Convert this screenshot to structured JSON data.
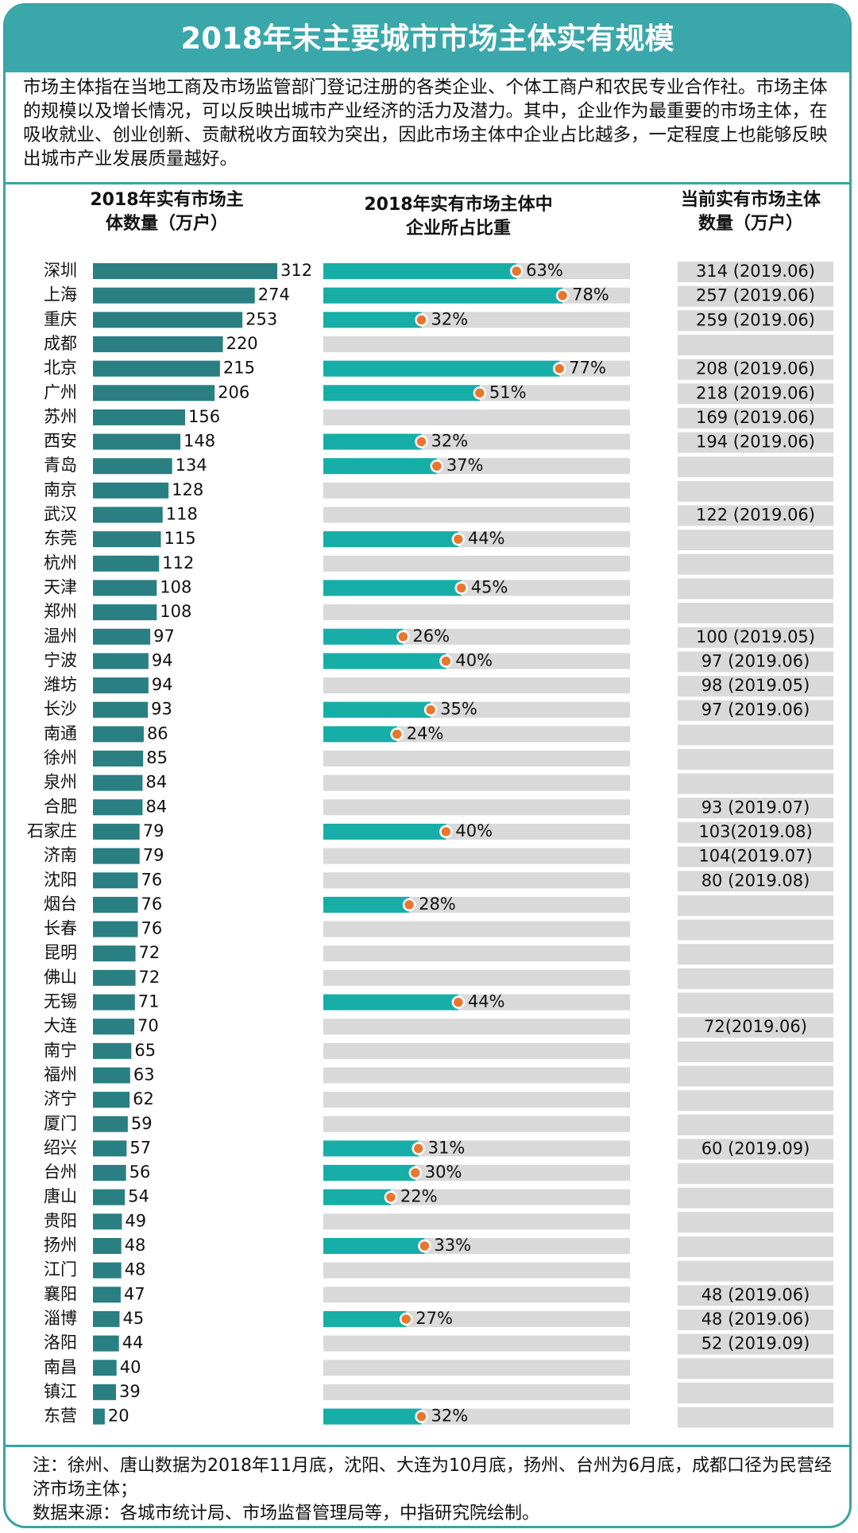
{
  "title": "2018年末主要城市市场主体实有规模",
  "intro": "市场主体指在当地工商及市场监管部门登记注册的各类企业、个体工商户和农民专业合作社。市场主体的规模以及增长情况，可以反映出城市产业经济的活力及潜力。其中，企业作为最重要的市场主体，在吸收就业、创业创新、贡献税收方面较为突出，因此市场主体中企业占比越多，一定程度上也能够反映出城市产业发展质量越好。",
  "columns": {
    "count_line1": "2018年实有市场主",
    "count_line2": "体数量（万户）",
    "share_line1": "2018年实有市场主体中",
    "share_line2": "企业所占比重",
    "current_line1": "当前实有市场主体",
    "current_line2": "数量（万户）"
  },
  "footer": {
    "note": "注：徐州、唐山数据为2018年11月底，沈阳、大连为10月底，扬州、台州为6月底，成都口径为民营经济市场主体；",
    "source": "数据来源：各城市统计局、市场监督管理局等，中指研究院绘制。"
  },
  "colors": {
    "count_bar": "#2a7f82",
    "share_bar": "#17aea8",
    "track": "#d9d9d9",
    "dot": "#e8762e",
    "accent": "#3aa7aa"
  },
  "chart_data": {
    "type": "bar",
    "categories": [
      "深圳",
      "上海",
      "重庆",
      "成都",
      "北京",
      "广州",
      "苏州",
      "西安",
      "青岛",
      "南京",
      "武汉",
      "东莞",
      "杭州",
      "天津",
      "郑州",
      "温州",
      "宁波",
      "潍坊",
      "长沙",
      "南通",
      "徐州",
      "泉州",
      "合肥",
      "石家庄",
      "济南",
      "沈阳",
      "烟台",
      "长春",
      "昆明",
      "佛山",
      "无锡",
      "大连",
      "南宁",
      "福州",
      "济宁",
      "厦门",
      "绍兴",
      "台州",
      "唐山",
      "贵阳",
      "扬州",
      "江门",
      "襄阳",
      "淄博",
      "洛阳",
      "南昌",
      "镇江",
      "东营"
    ],
    "series": [
      {
        "name": "2018年实有市场主体数量（万户）",
        "values": [
          312,
          274,
          253,
          220,
          215,
          206,
          156,
          148,
          134,
          128,
          118,
          115,
          112,
          108,
          108,
          97,
          94,
          94,
          93,
          86,
          85,
          84,
          84,
          79,
          79,
          76,
          76,
          76,
          72,
          72,
          71,
          70,
          65,
          63,
          62,
          59,
          57,
          56,
          54,
          49,
          48,
          48,
          47,
          45,
          44,
          40,
          39,
          20
        ]
      },
      {
        "name": "2018年实有市场主体中企业所占比重",
        "values": [
          63,
          78,
          32,
          null,
          77,
          51,
          null,
          32,
          37,
          null,
          null,
          44,
          null,
          45,
          null,
          26,
          40,
          null,
          35,
          24,
          null,
          null,
          null,
          40,
          null,
          null,
          28,
          null,
          null,
          null,
          44,
          null,
          null,
          null,
          null,
          null,
          31,
          30,
          22,
          null,
          33,
          null,
          null,
          27,
          null,
          null,
          null,
          32
        ]
      },
      {
        "name": "当前实有市场主体数量（万户）",
        "labels": [
          "314 (2019.06)",
          "257 (2019.06)",
          "259 (2019.06)",
          "",
          "208 (2019.06)",
          "218 (2019.06)",
          "169 (2019.06)",
          "194 (2019.06)",
          "",
          "",
          "122 (2019.06)",
          "",
          "",
          "",
          "",
          "100 (2019.05)",
          "97 (2019.06)",
          "98 (2019.05)",
          "97 (2019.06)",
          "",
          "",
          "",
          "93 (2019.07)",
          "103(2019.08)",
          "104(2019.07)",
          "80 (2019.08)",
          "",
          "",
          "",
          "",
          "",
          "72(2019.06)",
          "",
          "",
          "",
          "",
          "60 (2019.09)",
          "",
          "",
          "",
          "",
          "",
          "48 (2019.06)",
          "48 (2019.06)",
          "52 (2019.09)",
          "",
          "",
          ""
        ]
      }
    ],
    "share_max": 100,
    "count_max": 312
  }
}
